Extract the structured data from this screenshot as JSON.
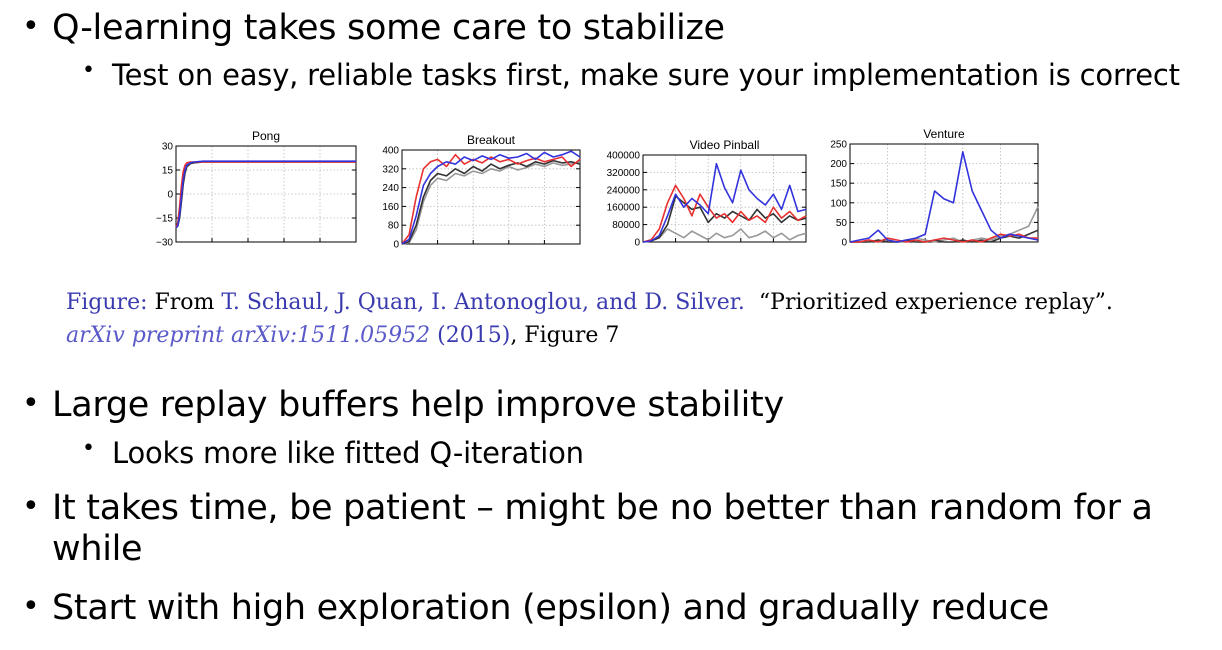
{
  "bullets": {
    "b1": "Q-learning takes some care to stabilize",
    "b1a": "Test on easy, reliable tasks first, make sure your implementation is correct",
    "b2": "Large replay buffers help improve stability",
    "b2a": "Looks more like fitted Q-iteration",
    "b3_line1": "It takes time, be patient – might be no better than random for a",
    "b3_line2": "while",
    "b4": "Start with high exploration (epsilon) and gradually reduce",
    "marker": "•"
  },
  "caption": {
    "figure_label": "Figure:",
    "from": " From ",
    "authors": "T. Schaul, J. Quan, I. Antonoglou, and D. Silver.",
    "title": "“Prioritized experience replay”.",
    "journal": "arXiv preprint arXiv:1511.05952",
    "year": "(2015)",
    "tail": ", Figure 7"
  },
  "colors": {
    "series_red": "#e83030",
    "series_blue": "#3333dd",
    "series_dark": "#333333",
    "series_gray": "#999999",
    "caption_blue": "#3b3bb0"
  },
  "chart_data": [
    {
      "type": "line",
      "title": "Pong",
      "ylim": [
        -30,
        30
      ],
      "yticks": [
        "30",
        "15",
        "0",
        "−15",
        "−30"
      ],
      "x": [
        0,
        1,
        2,
        3,
        4,
        5,
        6,
        8,
        10,
        15,
        20,
        30,
        40,
        50,
        60,
        70,
        80,
        90,
        100
      ],
      "series": [
        {
          "color": "red",
          "values": [
            -21,
            -18,
            -8,
            5,
            14,
            18,
            19.5,
            20,
            20,
            20,
            20,
            20,
            20,
            20,
            20,
            20,
            20,
            20,
            20
          ]
        },
        {
          "color": "blue",
          "values": [
            -21,
            -20,
            -13,
            -2,
            9,
            15,
            18,
            19.5,
            20,
            20.5,
            20.5,
            20.5,
            20.5,
            20.5,
            20.5,
            20.5,
            20.5,
            20.5,
            20.5
          ]
        },
        {
          "color": "dark",
          "values": [
            -21,
            -20,
            -15,
            -5,
            6,
            13,
            17,
            19,
            19.5,
            20,
            20,
            20,
            20,
            20,
            20,
            20,
            20,
            20,
            20
          ]
        }
      ]
    },
    {
      "type": "line",
      "title": "Breakout",
      "ylim": [
        0,
        400
      ],
      "yticks": [
        "400",
        "320",
        "240",
        "160",
        "80",
        "0"
      ],
      "x": [
        0,
        4,
        8,
        12,
        16,
        20,
        25,
        30,
        35,
        40,
        45,
        50,
        55,
        60,
        65,
        70,
        75,
        80,
        85,
        90,
        95,
        100
      ],
      "series": [
        {
          "color": "red",
          "values": [
            0,
            40,
            200,
            320,
            350,
            360,
            330,
            380,
            340,
            360,
            345,
            370,
            350,
            360,
            340,
            355,
            365,
            350,
            360,
            370,
            330,
            360
          ]
        },
        {
          "color": "blue",
          "values": [
            0,
            20,
            120,
            250,
            300,
            330,
            350,
            340,
            370,
            355,
            375,
            360,
            380,
            365,
            370,
            385,
            360,
            390,
            370,
            380,
            395,
            370
          ]
        },
        {
          "color": "dark",
          "values": [
            0,
            10,
            80,
            200,
            270,
            300,
            290,
            320,
            300,
            330,
            310,
            340,
            320,
            335,
            345,
            330,
            350,
            340,
            355,
            345,
            350,
            340
          ]
        },
        {
          "color": "gray",
          "values": [
            0,
            5,
            60,
            180,
            250,
            280,
            270,
            300,
            290,
            310,
            300,
            320,
            310,
            330,
            315,
            325,
            340,
            330,
            345,
            335,
            340,
            350
          ]
        }
      ]
    },
    {
      "type": "line",
      "title": "Video Pinball",
      "ylim": [
        0,
        400000
      ],
      "yticks": [
        "400000",
        "320000",
        "240000",
        "160000",
        "80000",
        "0"
      ],
      "x": [
        0,
        5,
        10,
        15,
        20,
        25,
        30,
        35,
        40,
        45,
        50,
        55,
        60,
        65,
        70,
        75,
        80,
        85,
        90,
        95,
        100
      ],
      "series": [
        {
          "color": "red",
          "values": [
            0,
            10000,
            60000,
            180000,
            260000,
            200000,
            120000,
            220000,
            160000,
            110000,
            130000,
            90000,
            140000,
            100000,
            120000,
            90000,
            160000,
            110000,
            140000,
            100000,
            120000
          ]
        },
        {
          "color": "blue",
          "values": [
            0,
            5000,
            30000,
            120000,
            220000,
            160000,
            200000,
            170000,
            130000,
            360000,
            250000,
            180000,
            330000,
            240000,
            200000,
            170000,
            220000,
            150000,
            260000,
            140000,
            150000
          ]
        },
        {
          "color": "dark",
          "values": [
            0,
            5000,
            20000,
            80000,
            210000,
            180000,
            150000,
            160000,
            90000,
            130000,
            110000,
            140000,
            120000,
            100000,
            150000,
            110000,
            130000,
            90000,
            120000,
            100000,
            110000
          ]
        },
        {
          "color": "gray",
          "values": [
            0,
            5000,
            20000,
            60000,
            40000,
            20000,
            50000,
            30000,
            10000,
            40000,
            20000,
            30000,
            60000,
            20000,
            30000,
            50000,
            20000,
            40000,
            10000,
            30000,
            40000
          ]
        }
      ]
    },
    {
      "type": "line",
      "title": "Venture",
      "ylim": [
        0,
        250
      ],
      "yticks": [
        "250",
        "200",
        "150",
        "100",
        "50",
        "0"
      ],
      "x": [
        0,
        5,
        10,
        15,
        20,
        25,
        30,
        35,
        40,
        45,
        50,
        55,
        60,
        65,
        70,
        75,
        80,
        85,
        90,
        95,
        100
      ],
      "series": [
        {
          "color": "blue",
          "values": [
            0,
            5,
            10,
            30,
            5,
            0,
            5,
            10,
            20,
            130,
            110,
            100,
            230,
            130,
            80,
            30,
            10,
            20,
            15,
            10,
            5
          ]
        },
        {
          "color": "red",
          "values": [
            0,
            0,
            5,
            0,
            10,
            5,
            0,
            5,
            0,
            5,
            10,
            5,
            0,
            5,
            0,
            10,
            20,
            15,
            20,
            10,
            10
          ]
        },
        {
          "color": "dark",
          "values": [
            0,
            0,
            0,
            5,
            0,
            0,
            5,
            0,
            0,
            5,
            0,
            0,
            5,
            0,
            5,
            0,
            10,
            15,
            10,
            20,
            30
          ]
        },
        {
          "color": "gray",
          "values": [
            0,
            0,
            5,
            0,
            5,
            0,
            0,
            10,
            5,
            0,
            5,
            10,
            0,
            5,
            10,
            5,
            15,
            20,
            30,
            40,
            90
          ]
        }
      ]
    }
  ]
}
